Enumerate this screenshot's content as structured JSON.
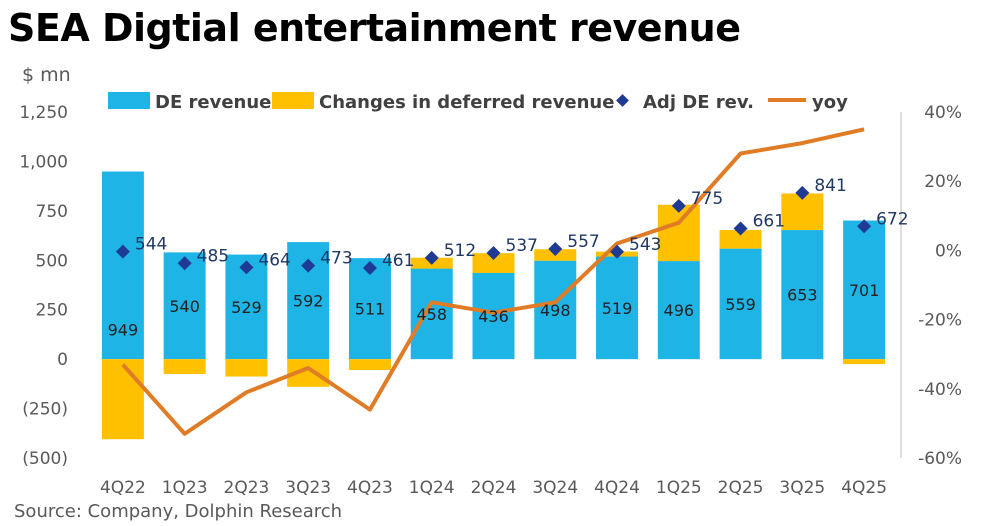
{
  "title": "SEA Digtial entertainment revenue",
  "unit_label": "$ mn",
  "source": "Source: Company, Dolphin Research",
  "colors": {
    "de_revenue": "#1fb4e6",
    "deferred": "#ffc000",
    "adj": "#1f3a93",
    "yoy": "#e07b26"
  },
  "chart_data": {
    "type": "bar",
    "categories": [
      "4Q22",
      "1Q23",
      "2Q23",
      "3Q23",
      "4Q23",
      "1Q24",
      "2Q24",
      "3Q24",
      "4Q24",
      "1Q25",
      "2Q25",
      "3Q25",
      "4Q25"
    ],
    "legend": [
      "DE revenue",
      "Changes in deferred revenue",
      "Adj DE rev.",
      "yoy"
    ],
    "legend_position": "top",
    "y_left": {
      "min": -500,
      "max": 1250,
      "ticks": [
        "(500)",
        "(250)",
        "0",
        "250",
        "500",
        "750",
        "1,000",
        "1,250"
      ]
    },
    "y_right": {
      "min": -60,
      "max": 40,
      "ticks": [
        "-60%",
        "-40%",
        "-20%",
        "0%",
        "20%",
        "40%"
      ]
    },
    "grid": false,
    "series": [
      {
        "name": "DE revenue",
        "type": "bar",
        "values": [
          949,
          540,
          529,
          592,
          511,
          458,
          436,
          498,
          519,
          496,
          559,
          653,
          701
        ]
      },
      {
        "name": "Changes in deferred revenue",
        "type": "bar-stacked",
        "values": [
          -405,
          -75,
          -88,
          -140,
          -55,
          55,
          100,
          58,
          25,
          285,
          94,
          185,
          -25
        ]
      },
      {
        "name": "Adj DE rev.",
        "type": "scatter",
        "values": [
          544,
          485,
          464,
          473,
          461,
          512,
          537,
          557,
          543,
          775,
          661,
          841,
          672
        ]
      },
      {
        "name": "yoy",
        "type": "line",
        "axis": "right",
        "values": [
          -33,
          -53,
          -41,
          -34,
          -46,
          -15,
          -18,
          -15,
          2,
          8,
          28,
          31,
          35
        ]
      }
    ],
    "bar_labels": [
      "949",
      "540",
      "529",
      "592",
      "511",
      "458",
      "436",
      "498",
      "519",
      "496",
      "559",
      "653",
      "701"
    ],
    "adj_labels": [
      "544",
      "485",
      "464",
      "473",
      "461",
      "512",
      "537",
      "557",
      "543",
      "775",
      "661",
      "841",
      "672"
    ]
  }
}
